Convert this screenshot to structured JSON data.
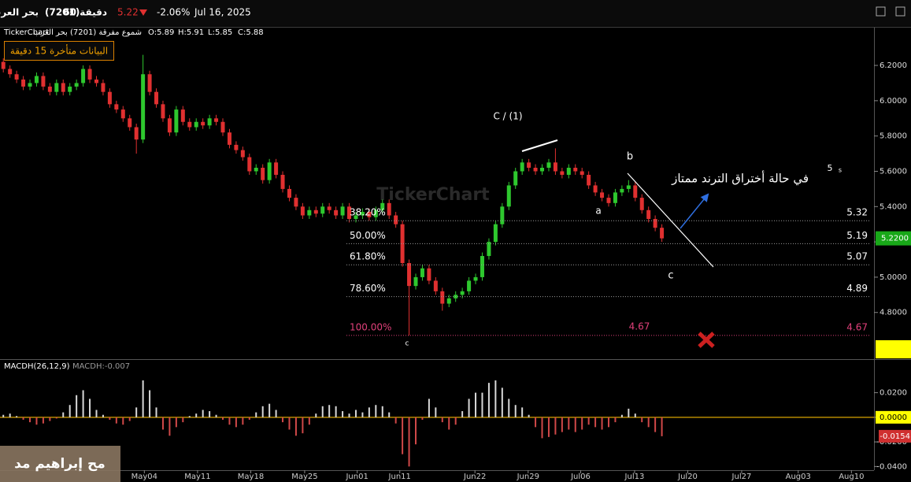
{
  "header": {
    "name": "بحر العرب",
    "code": "(7201)",
    "interval": "60 دقيقة",
    "price": "5.22",
    "change": "-2.06%",
    "date": "Jul 16, 2025"
  },
  "info": {
    "source": "TickerChart",
    "series": "شموع مفرقة (7201) بحر العرب",
    "open": "O:5.89",
    "high": "H:5.91",
    "low": "L:5.85",
    "close": "C:5.88"
  },
  "delay_notice": "البيانات متأخرة 15 دقيقة",
  "watermark": "TickerChart",
  "overlay_text": "مح إبراهيم مد",
  "chart_data": [
    {
      "type": "candlestick",
      "xlim": [
        -0.5,
        130.3
      ],
      "ylim": [
        4.54,
        6.41
      ],
      "yticks": [
        {
          "value": 4.8,
          "label": "4.8000"
        },
        {
          "value": 5.0,
          "label": "5.0000"
        },
        {
          "value": 5.2,
          "label": "5.2000"
        },
        {
          "value": 5.4,
          "label": "5.4000"
        },
        {
          "value": 5.6,
          "label": "5.6000"
        },
        {
          "value": 5.8,
          "label": "5.8000"
        },
        {
          "value": 6.0,
          "label": "6.0000"
        },
        {
          "value": 6.2,
          "label": "6.2000"
        }
      ],
      "up_color": "#2ec82e",
      "down_color": "#e03030",
      "open": [
        6.22,
        6.18,
        6.15,
        6.12,
        6.08,
        6.1,
        6.14,
        6.08,
        6.05,
        6.1,
        6.05,
        6.08,
        6.1,
        6.18,
        6.12,
        6.1,
        6.05,
        5.98,
        5.95,
        5.9,
        5.85,
        5.78,
        6.15,
        6.05,
        5.98,
        5.9,
        5.82,
        5.95,
        5.88,
        5.85,
        5.88,
        5.86,
        5.9,
        5.88,
        5.82,
        5.75,
        5.72,
        5.68,
        5.6,
        5.62,
        5.55,
        5.65,
        5.58,
        5.5,
        5.45,
        5.4,
        5.35,
        5.38,
        5.36,
        5.4,
        5.38,
        5.35,
        5.4,
        5.33,
        5.35,
        5.37,
        5.34,
        5.38,
        5.42,
        5.35,
        5.3,
        5.08,
        4.95,
        5.0,
        5.05,
        4.98,
        4.92,
        4.85,
        4.88,
        4.9,
        4.92,
        4.98,
        5.0,
        5.12,
        5.2,
        5.3,
        5.4,
        5.52,
        5.6,
        5.65,
        5.62,
        5.6,
        5.62,
        5.65,
        5.6,
        5.58,
        5.62,
        5.6,
        5.58,
        5.52,
        5.48,
        5.45,
        5.42,
        5.48,
        5.5,
        5.52,
        5.45,
        5.38,
        5.33,
        5.28
      ],
      "high": [
        6.24,
        6.2,
        6.17,
        6.14,
        6.12,
        6.16,
        6.16,
        6.1,
        6.12,
        6.12,
        6.1,
        6.12,
        6.2,
        6.2,
        6.14,
        6.12,
        6.07,
        6.0,
        5.97,
        5.92,
        5.87,
        6.26,
        6.17,
        6.07,
        6.0,
        5.92,
        5.97,
        5.97,
        5.9,
        5.9,
        5.9,
        5.92,
        5.92,
        5.9,
        5.84,
        5.77,
        5.74,
        5.7,
        5.64,
        5.64,
        5.67,
        5.67,
        5.6,
        5.52,
        5.47,
        5.42,
        5.4,
        5.4,
        5.42,
        5.42,
        5.4,
        5.42,
        5.42,
        5.37,
        5.39,
        5.39,
        5.4,
        5.44,
        5.44,
        5.37,
        5.32,
        5.1,
        5.02,
        5.07,
        5.07,
        5.0,
        4.94,
        4.9,
        4.92,
        4.94,
        5.0,
        5.02,
        5.14,
        5.22,
        5.32,
        5.42,
        5.54,
        5.62,
        5.67,
        5.67,
        5.64,
        5.64,
        5.67,
        5.73,
        5.62,
        5.64,
        5.64,
        5.62,
        5.6,
        5.54,
        5.5,
        5.47,
        5.5,
        5.52,
        5.55,
        5.54,
        5.47,
        5.4,
        5.35,
        5.3
      ],
      "low": [
        6.16,
        6.13,
        6.1,
        6.06,
        6.06,
        6.08,
        6.06,
        6.03,
        6.03,
        6.03,
        6.03,
        6.06,
        6.08,
        6.1,
        6.08,
        6.03,
        5.96,
        5.93,
        5.88,
        5.83,
        5.7,
        5.76,
        6.03,
        5.96,
        5.88,
        5.8,
        5.8,
        5.86,
        5.83,
        5.83,
        5.84,
        5.84,
        5.86,
        5.8,
        5.73,
        5.7,
        5.66,
        5.58,
        5.58,
        5.53,
        5.53,
        5.56,
        5.48,
        5.43,
        5.38,
        5.33,
        5.33,
        5.34,
        5.34,
        5.36,
        5.33,
        5.33,
        5.31,
        5.31,
        5.33,
        5.32,
        5.32,
        5.36,
        5.33,
        5.28,
        5.06,
        4.67,
        4.93,
        4.98,
        4.96,
        4.9,
        4.81,
        4.83,
        4.86,
        4.88,
        4.9,
        4.96,
        4.98,
        5.1,
        5.18,
        5.28,
        5.38,
        5.5,
        5.58,
        5.6,
        5.58,
        5.58,
        5.6,
        5.58,
        5.56,
        5.56,
        5.58,
        5.56,
        5.5,
        5.46,
        5.43,
        5.4,
        5.4,
        5.46,
        5.48,
        5.43,
        5.36,
        5.31,
        5.26,
        5.2
      ],
      "close": [
        6.18,
        6.15,
        6.12,
        6.08,
        6.1,
        6.14,
        6.08,
        6.05,
        6.1,
        6.05,
        6.08,
        6.1,
        6.18,
        6.12,
        6.1,
        6.05,
        5.98,
        5.95,
        5.9,
        5.85,
        5.78,
        6.15,
        6.05,
        5.98,
        5.9,
        5.82,
        5.95,
        5.88,
        5.85,
        5.88,
        5.86,
        5.9,
        5.88,
        5.82,
        5.75,
        5.72,
        5.68,
        5.6,
        5.62,
        5.55,
        5.65,
        5.58,
        5.5,
        5.45,
        5.4,
        5.35,
        5.38,
        5.36,
        5.4,
        5.38,
        5.35,
        5.4,
        5.33,
        5.35,
        5.37,
        5.34,
        5.38,
        5.42,
        5.35,
        5.3,
        5.08,
        4.95,
        5.0,
        5.05,
        4.98,
        4.92,
        4.85,
        4.88,
        4.9,
        4.92,
        4.98,
        5.0,
        5.12,
        5.2,
        5.3,
        5.4,
        5.52,
        5.6,
        5.65,
        5.62,
        5.6,
        5.62,
        5.65,
        5.6,
        5.58,
        5.62,
        5.6,
        5.58,
        5.52,
        5.48,
        5.45,
        5.42,
        5.48,
        5.5,
        5.52,
        5.45,
        5.38,
        5.33,
        5.28,
        5.22
      ],
      "current_label": "5.2200",
      "fib_levels": [
        {
          "label": "38.20%",
          "value": 5.32,
          "color": "#9a9a9a"
        },
        {
          "label": "50.00%",
          "value": 5.19,
          "color": "#9a9a9a"
        },
        {
          "label": "61.80%",
          "value": 5.07,
          "color": "#9a9a9a"
        },
        {
          "label": "78.60%",
          "value": 4.89,
          "color": "#9a9a9a"
        },
        {
          "label": "100.00%",
          "value": 4.67,
          "color": "#e0407a"
        }
      ],
      "annotations": [
        "C / (1)",
        "b",
        "a",
        "c",
        "c",
        "5",
        "s",
        "في حالة أختراق الترند ممتاز"
      ]
    },
    {
      "type": "bar",
      "title": "MACDH(26,12,9)",
      "subtitle": "MACDH:-0.007",
      "xlim": [
        -0.5,
        130.3
      ],
      "xticks": [
        {
          "value": 21.2,
          "label": "May04"
        },
        {
          "value": 29.2,
          "label": "May11"
        },
        {
          "value": 37.2,
          "label": "May18"
        },
        {
          "value": 45.3,
          "label": "May25"
        },
        {
          "value": 53.2,
          "label": "Jun01"
        },
        {
          "value": 59.6,
          "label": "Jun11"
        },
        {
          "value": 70.9,
          "label": "Jun22"
        },
        {
          "value": 78.9,
          "label": "Jun29"
        },
        {
          "value": 86.8,
          "label": "Jul06"
        },
        {
          "value": 94.9,
          "label": "Jul13"
        },
        {
          "value": 102.9,
          "label": "Jul20"
        },
        {
          "value": 111,
          "label": "Jul27"
        },
        {
          "value": 119.5,
          "label": "Aug03"
        },
        {
          "value": 127.5,
          "label": "Aug10"
        }
      ],
      "ylim": [
        -0.043,
        0.046
      ],
      "yticks": [
        {
          "value": 0.02,
          "label": "0.0200"
        },
        {
          "value": 0,
          "label": "0.0000"
        },
        {
          "value": -0.02,
          "label": "-0.0200"
        },
        {
          "value": -0.04,
          "label": "-0.0400"
        }
      ],
      "pos_color": "#d8d8d8",
      "neg_color": "#d04848",
      "zero_color": "#d9a400",
      "values": [
        0.002,
        0.003,
        0.001,
        -0.002,
        -0.004,
        -0.006,
        -0.005,
        -0.003,
        -0.001,
        0.004,
        0.01,
        0.018,
        0.022,
        0.015,
        0.006,
        0.002,
        -0.002,
        -0.005,
        -0.006,
        -0.003,
        0.008,
        0.03,
        0.022,
        0.008,
        -0.01,
        -0.015,
        -0.008,
        -0.004,
        0.001,
        0.003,
        0.006,
        0.005,
        0.002,
        -0.002,
        -0.006,
        -0.008,
        -0.006,
        -0.002,
        0.004,
        0.009,
        0.011,
        0.006,
        -0.004,
        -0.01,
        -0.015,
        -0.013,
        -0.006,
        0.003,
        0.009,
        0.01,
        0.009,
        0.005,
        0.003,
        0.006,
        0.004,
        0.008,
        0.01,
        0.009,
        0.004,
        -0.005,
        -0.03,
        -0.04,
        -0.022,
        -0.002,
        0.015,
        0.008,
        -0.004,
        -0.01,
        -0.006,
        0.005,
        0.015,
        0.02,
        0.02,
        0.028,
        0.03,
        0.024,
        0.015,
        0.01,
        0.008,
        0.002,
        -0.008,
        -0.017,
        -0.016,
        -0.014,
        -0.012,
        -0.01,
        -0.012,
        -0.01,
        -0.006,
        -0.008,
        -0.01,
        -0.008,
        -0.004,
        0.002,
        0.007,
        0.003,
        -0.004,
        -0.008,
        -0.012,
        -0.0154
      ],
      "current_label": "-0.0154"
    }
  ]
}
